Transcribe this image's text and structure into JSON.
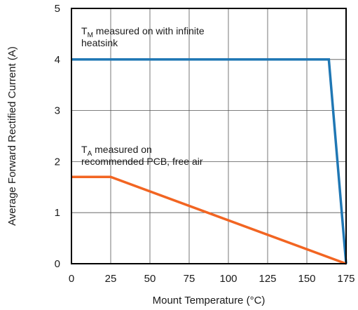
{
  "chart_data": {
    "type": "line",
    "title": "",
    "xlabel": "Mount Temperature (°C)",
    "ylabel": "Average Forward Rectified Current (A)",
    "xlim": [
      0,
      175
    ],
    "ylim": [
      0,
      5
    ],
    "xticks": [
      0,
      25,
      50,
      75,
      100,
      125,
      150,
      175
    ],
    "yticks": [
      0,
      1,
      2,
      3,
      4,
      5
    ],
    "grid": true,
    "legend": "none",
    "series": [
      {
        "color": "#1f77b4",
        "x": [
          0,
          164,
          175
        ],
        "y": [
          4,
          4,
          0
        ]
      },
      {
        "color": "#f26522",
        "x": [
          0,
          25,
          175
        ],
        "y": [
          1.7,
          1.7,
          0
        ]
      }
    ],
    "annotations": [
      {
        "lines": [
          [
            "T",
            "M",
            " measured on with infinite"
          ],
          [
            "heatsink"
          ]
        ]
      },
      {
        "lines": [
          [
            "T",
            "A",
            " measured on"
          ],
          [
            "recommended PCB, free air"
          ]
        ]
      }
    ]
  }
}
